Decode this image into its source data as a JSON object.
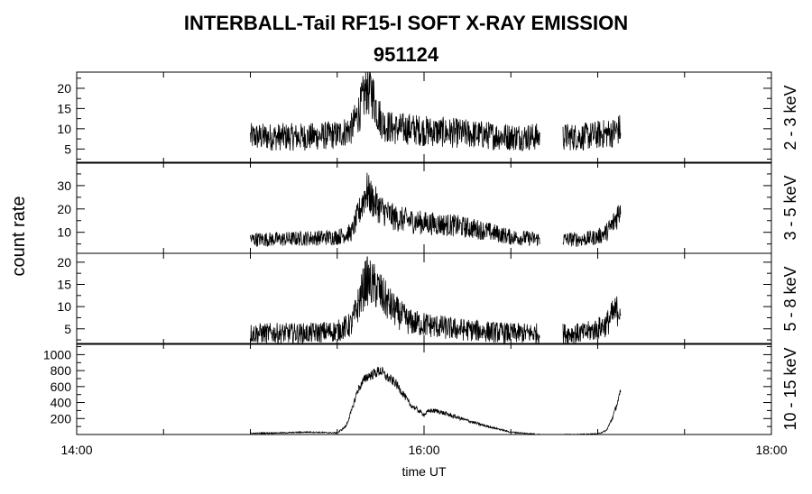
{
  "header": {
    "title": "INTERBALL-Tail RF15-I SOFT X-RAY EMISSION",
    "subtitle": "951124"
  },
  "chart_data": {
    "type": "line",
    "title": "INTERBALL-Tail RF15-I SOFT X-RAY EMISSION",
    "subtitle": "951124",
    "xlabel": "time UT",
    "ylabel": "count rate",
    "x_ticks": [
      "14:00",
      "16:00",
      "18:00"
    ],
    "xlim": [
      "14:00",
      "18:00"
    ],
    "grid": false,
    "colors": {
      "trace": "#000000",
      "axes": "#000000",
      "background": "#ffffff"
    },
    "data_gaps": [
      [
        "14:00",
        "15:00"
      ],
      [
        "16:40",
        "16:48"
      ],
      [
        "17:08",
        "18:00"
      ]
    ],
    "series": [
      {
        "name": "2 - 3 keV",
        "yticks": [
          5,
          10,
          15,
          20
        ],
        "ylim": [
          1.5,
          24
        ],
        "times": [
          "15:00",
          "15:10",
          "15:20",
          "15:30",
          "15:35",
          "15:38",
          "15:40",
          "15:42",
          "15:44",
          "15:46",
          "15:50",
          "15:55",
          "16:00",
          "16:10",
          "16:20",
          "16:30",
          "16:40",
          "16:48",
          "16:55",
          "17:00",
          "17:05",
          "17:08"
        ],
        "values": [
          8,
          8,
          8,
          8.5,
          10,
          15,
          20,
          19,
          14,
          11,
          10,
          10,
          9.5,
          9,
          8.5,
          8,
          8,
          8,
          8,
          8.5,
          9,
          10
        ]
      },
      {
        "name": "3 - 5 keV",
        "yticks": [
          10,
          20,
          30
        ],
        "ylim": [
          1,
          40
        ],
        "times": [
          "15:00",
          "15:10",
          "15:20",
          "15:30",
          "15:35",
          "15:38",
          "15:40",
          "15:42",
          "15:45",
          "15:50",
          "15:55",
          "16:00",
          "16:10",
          "16:20",
          "16:30",
          "16:40",
          "16:48",
          "16:55",
          "17:00",
          "17:03",
          "17:05",
          "17:07",
          "17:08"
        ],
        "values": [
          7,
          7,
          7.5,
          8,
          10,
          20,
          28,
          24,
          20,
          16,
          15,
          14,
          13,
          11,
          8,
          7,
          7,
          7,
          8,
          10,
          13,
          18,
          22
        ]
      },
      {
        "name": "5 - 8 keV",
        "yticks": [
          5,
          10,
          15,
          20
        ],
        "ylim": [
          1.5,
          22
        ],
        "times": [
          "15:00",
          "15:10",
          "15:20",
          "15:30",
          "15:35",
          "15:38",
          "15:40",
          "15:42",
          "15:44",
          "15:46",
          "15:50",
          "15:55",
          "16:00",
          "16:10",
          "16:20",
          "16:30",
          "16:40",
          "16:48",
          "16:55",
          "17:00",
          "17:03",
          "17:05",
          "17:08"
        ],
        "values": [
          4,
          4,
          4,
          4.5,
          6,
          12,
          16,
          15,
          14,
          12,
          9,
          6.5,
          6,
          5,
          4.5,
          4,
          4,
          4,
          4,
          5,
          6,
          8,
          10
        ]
      },
      {
        "name": "10 - 15 keV",
        "yticks": [
          200,
          400,
          600,
          800,
          1000
        ],
        "ylim": [
          0,
          1140
        ],
        "times": [
          "15:00",
          "15:10",
          "15:20",
          "15:30",
          "15:33",
          "15:35",
          "15:37",
          "15:40",
          "15:42",
          "15:45",
          "15:47",
          "15:50",
          "15:53",
          "15:55",
          "16:00",
          "16:02",
          "16:05",
          "16:10",
          "16:20",
          "16:30",
          "16:40",
          "16:48",
          "16:55",
          "17:00",
          "17:03",
          "17:05",
          "17:07",
          "17:08"
        ],
        "values": [
          15,
          20,
          30,
          20,
          100,
          300,
          550,
          720,
          750,
          800,
          720,
          650,
          500,
          380,
          250,
          300,
          290,
          230,
          120,
          30,
          0,
          0,
          2,
          8,
          50,
          200,
          420,
          540
        ]
      }
    ]
  }
}
